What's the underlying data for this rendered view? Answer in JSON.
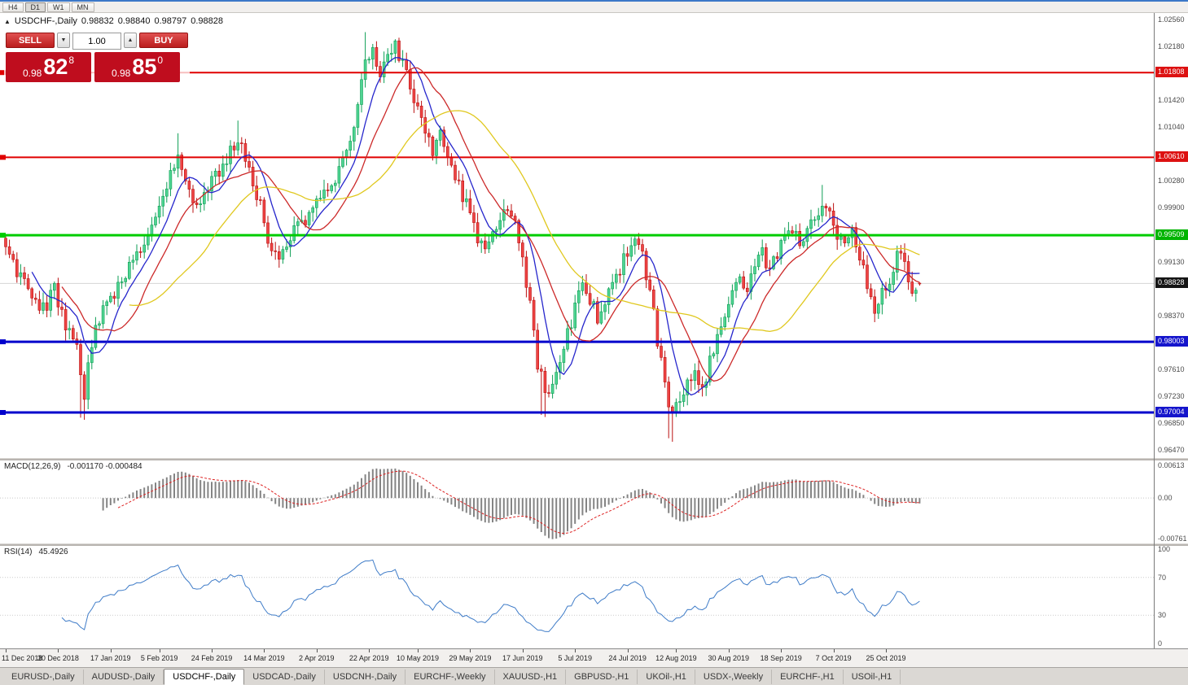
{
  "toolbar": {
    "timeframes": [
      "H4",
      "D1",
      "W1",
      "MN"
    ],
    "active": "D1"
  },
  "chart": {
    "header": {
      "icon": "▲",
      "symbol": "USDCHF-,Daily",
      "open": "0.98832",
      "high": "0.98840",
      "low": "0.98797",
      "close": "0.98828"
    },
    "price_ticks": [
      {
        "v": 1.0256,
        "t": "1.02560"
      },
      {
        "v": 1.0218,
        "t": "1.02180"
      },
      {
        "v": 1.0142,
        "t": "1.01420"
      },
      {
        "v": 1.0104,
        "t": "1.01040"
      },
      {
        "v": 1.0028,
        "t": "1.00280"
      },
      {
        "v": 0.999,
        "t": "0.99900"
      },
      {
        "v": 0.9913,
        "t": "0.99130"
      },
      {
        "v": 0.9837,
        "t": "0.98370"
      },
      {
        "v": 0.9761,
        "t": "0.97610"
      },
      {
        "v": 0.9723,
        "t": "0.97230"
      },
      {
        "v": 0.9685,
        "t": "0.96850"
      },
      {
        "v": 0.9647,
        "t": "0.96470"
      }
    ],
    "badges": [
      {
        "v": 1.01808,
        "t": "1.01808",
        "c": "#dd1111"
      },
      {
        "v": 1.0061,
        "t": "1.00610",
        "c": "#dd1111"
      },
      {
        "v": 0.99509,
        "t": "0.99509",
        "c": "#00b400"
      },
      {
        "v": 0.98828,
        "t": "0.98828",
        "c": "#151515"
      },
      {
        "v": 0.98003,
        "t": "0.98003",
        "c": "#1515cc"
      },
      {
        "v": 0.97004,
        "t": "0.97004",
        "c": "#1515cc"
      }
    ],
    "hlines": [
      {
        "v": 1.01808,
        "c": "#e00000",
        "w": 2
      },
      {
        "v": 1.0061,
        "c": "#e00000",
        "w": 2
      },
      {
        "v": 0.99509,
        "c": "#00cc00",
        "w": 3
      },
      {
        "v": 0.98003,
        "c": "#0000cc",
        "w": 3
      },
      {
        "v": 0.97004,
        "c": "#0000cc",
        "w": 3
      }
    ],
    "current_price": 0.98828
  },
  "trade": {
    "sell_label": "SELL",
    "buy_label": "BUY",
    "volume": "1.00",
    "down_icon": "▼",
    "up_icon": "▲",
    "sell_price": {
      "main": "0.98",
      "big": "82",
      "sup": "8"
    },
    "buy_price": {
      "main": "0.98",
      "big": "85",
      "sup": "0"
    }
  },
  "chart_data": {
    "type": "candlestick",
    "symbol": "USDCHF",
    "timeframe": "Daily",
    "value_range": [
      0.9636,
      1.0265
    ],
    "candle_count": 245,
    "seed": 20191106,
    "close_anchors": [
      [
        0,
        0.9935
      ],
      [
        3,
        0.99
      ],
      [
        6,
        0.9875
      ],
      [
        10,
        0.9845
      ],
      [
        13,
        0.9872
      ],
      [
        16,
        0.982
      ],
      [
        19,
        0.9786
      ],
      [
        21,
        0.9726
      ],
      [
        23,
        0.98
      ],
      [
        26,
        0.9848
      ],
      [
        29,
        0.9872
      ],
      [
        32,
        0.9895
      ],
      [
        35,
        0.9922
      ],
      [
        38,
        0.9952
      ],
      [
        41,
        0.999
      ],
      [
        44,
        1.0035
      ],
      [
        46,
        1.0062
      ],
      [
        48,
        1.0022
      ],
      [
        50,
        0.9988
      ],
      [
        53,
        1.0006
      ],
      [
        56,
        1.0032
      ],
      [
        59,
        1.0056
      ],
      [
        62,
        1.0088
      ],
      [
        64,
        1.0058
      ],
      [
        66,
        1.003
      ],
      [
        68,
        0.9992
      ],
      [
        70,
        0.9942
      ],
      [
        73,
        0.9926
      ],
      [
        76,
        0.9946
      ],
      [
        79,
        0.997
      ],
      [
        82,
        0.9986
      ],
      [
        85,
        1.0006
      ],
      [
        88,
        1.0032
      ],
      [
        91,
        1.0072
      ],
      [
        94,
        1.0132
      ],
      [
        96,
        1.0188
      ],
      [
        98,
        1.0208
      ],
      [
        100,
        1.0182
      ],
      [
        102,
        1.0196
      ],
      [
        104,
        1.0216
      ],
      [
        106,
        1.0198
      ],
      [
        108,
        1.0152
      ],
      [
        110,
        1.0126
      ],
      [
        112,
        1.0092
      ],
      [
        114,
        1.0066
      ],
      [
        116,
        1.0096
      ],
      [
        118,
        1.0072
      ],
      [
        120,
        1.0036
      ],
      [
        122,
        1.0002
      ],
      [
        124,
        0.9986
      ],
      [
        126,
        0.995
      ],
      [
        128,
        0.9932
      ],
      [
        130,
        0.9946
      ],
      [
        132,
        0.9976
      ],
      [
        134,
        0.9992
      ],
      [
        136,
        0.9962
      ],
      [
        138,
        0.9922
      ],
      [
        140,
        0.9852
      ],
      [
        142,
        0.9772
      ],
      [
        144,
        0.973
      ],
      [
        146,
        0.9746
      ],
      [
        148,
        0.9776
      ],
      [
        150,
        0.9812
      ],
      [
        152,
        0.9846
      ],
      [
        154,
        0.9882
      ],
      [
        156,
        0.9862
      ],
      [
        158,
        0.9836
      ],
      [
        160,
        0.9862
      ],
      [
        162,
        0.9882
      ],
      [
        164,
        0.9906
      ],
      [
        166,
        0.9932
      ],
      [
        168,
        0.9952
      ],
      [
        170,
        0.9922
      ],
      [
        172,
        0.9872
      ],
      [
        174,
        0.9802
      ],
      [
        176,
        0.9742
      ],
      [
        178,
        0.9692
      ],
      [
        180,
        0.9716
      ],
      [
        182,
        0.9742
      ],
      [
        184,
        0.9756
      ],
      [
        186,
        0.9726
      ],
      [
        188,
        0.9776
      ],
      [
        190,
        0.9812
      ],
      [
        193,
        0.9856
      ],
      [
        196,
        0.9896
      ],
      [
        198,
        0.9872
      ],
      [
        200,
        0.9902
      ],
      [
        202,
        0.9926
      ],
      [
        204,
        0.9902
      ],
      [
        206,
        0.9926
      ],
      [
        208,
        0.9946
      ],
      [
        210,
        0.9962
      ],
      [
        212,
        0.9932
      ],
      [
        214,
        0.9952
      ],
      [
        216,
        0.9976
      ],
      [
        218,
        0.9996
      ],
      [
        220,
        0.9982
      ],
      [
        222,
        0.9956
      ],
      [
        224,
        0.9932
      ],
      [
        226,
        0.9956
      ],
      [
        228,
        0.9926
      ],
      [
        230,
        0.9882
      ],
      [
        232,
        0.9846
      ],
      [
        234,
        0.9866
      ],
      [
        236,
        0.9892
      ],
      [
        238,
        0.9926
      ],
      [
        240,
        0.9906
      ],
      [
        242,
        0.9866
      ],
      [
        244,
        0.9883
      ]
    ],
    "wick_overrides": [
      [
        20,
        "l",
        0.9693
      ],
      [
        21,
        "l",
        0.969
      ],
      [
        46,
        "h",
        1.0095
      ],
      [
        62,
        "h",
        1.0113
      ],
      [
        96,
        "h",
        1.0238
      ],
      [
        104,
        "h",
        1.0228
      ],
      [
        143,
        "l",
        0.9697
      ],
      [
        144,
        "l",
        0.9694
      ],
      [
        177,
        "l",
        0.9664
      ],
      [
        178,
        "l",
        0.9659
      ],
      [
        218,
        "h",
        1.0022
      ]
    ],
    "last_candle": {
      "open": 0.98832,
      "high": 0.9884,
      "low": 0.98797,
      "close": 0.98828
    },
    "moving_averages": [
      {
        "period": 8,
        "color": "#2626cc"
      },
      {
        "period": 16,
        "color": "#cc2929"
      },
      {
        "period": 34,
        "color": "#e0c81e"
      }
    ],
    "x_labels": [
      {
        "i": 0,
        "t": "11 Dec 2018"
      },
      {
        "i": 14,
        "t": "30 Dec 2018"
      },
      {
        "i": 28,
        "t": "17 Jan 2019"
      },
      {
        "i": 41,
        "t": "5 Feb 2019"
      },
      {
        "i": 55,
        "t": "24 Feb 2019"
      },
      {
        "i": 69,
        "t": "14 Mar 2019"
      },
      {
        "i": 83,
        "t": "2 Apr 2019"
      },
      {
        "i": 97,
        "t": "22 Apr 2019"
      },
      {
        "i": 110,
        "t": "10 May 2019"
      },
      {
        "i": 124,
        "t": "29 May 2019"
      },
      {
        "i": 138,
        "t": "17 Jun 2019"
      },
      {
        "i": 152,
        "t": "5 Jul 2019"
      },
      {
        "i": 166,
        "t": "24 Jul 2019"
      },
      {
        "i": 179,
        "t": "12 Aug 2019"
      },
      {
        "i": 193,
        "t": "30 Aug 2019"
      },
      {
        "i": 207,
        "t": "18 Sep 2019"
      },
      {
        "i": 221,
        "t": "7 Oct 2019"
      },
      {
        "i": 235,
        "t": "25 Oct 2019"
      }
    ],
    "colors": {
      "up_fill": "#4fd492",
      "up_stroke": "#0e9e55",
      "down_fill": "#ee4444",
      "down_stroke": "#bb1111",
      "macd_hist": "#848484",
      "macd_signal": "#dd2222",
      "rsi_line": "#3f7cc8",
      "grid": "#d4d4d4"
    }
  },
  "macd": {
    "label": "MACD(12,26,9)",
    "values": "-0.001170 -0.000484",
    "range": [
      -0.00761,
      0.00613
    ],
    "axis": [
      {
        "v": 0.00613,
        "t": "0.00613"
      },
      {
        "v": 0,
        "t": "0.00"
      },
      {
        "v": -0.00761,
        "t": "-0.00761"
      }
    ]
  },
  "rsi": {
    "label": "RSI(14)",
    "value": "45.4926",
    "levels": [
      70,
      30
    ],
    "axis": [
      {
        "v": 100,
        "t": "100"
      },
      {
        "v": 70,
        "t": "70"
      },
      {
        "v": 30,
        "t": "30"
      },
      {
        "v": 0,
        "t": "0"
      }
    ]
  },
  "tabs": [
    {
      "label": "EURUSD-,Daily",
      "active": false
    },
    {
      "label": "AUDUSD-,Daily",
      "active": false
    },
    {
      "label": "USDCHF-,Daily",
      "active": true
    },
    {
      "label": "USDCAD-,Daily",
      "active": false
    },
    {
      "label": "USDCNH-,Daily",
      "active": false
    },
    {
      "label": "EURCHF-,Weekly",
      "active": false
    },
    {
      "label": "XAUUSD-,H1",
      "active": false
    },
    {
      "label": "GBPUSD-,H1",
      "active": false
    },
    {
      "label": "UKOil-,H1",
      "active": false
    },
    {
      "label": "USDX-,Weekly",
      "active": false
    },
    {
      "label": "EURCHF-,H1",
      "active": false
    },
    {
      "label": "USOil-,H1",
      "active": false
    }
  ]
}
